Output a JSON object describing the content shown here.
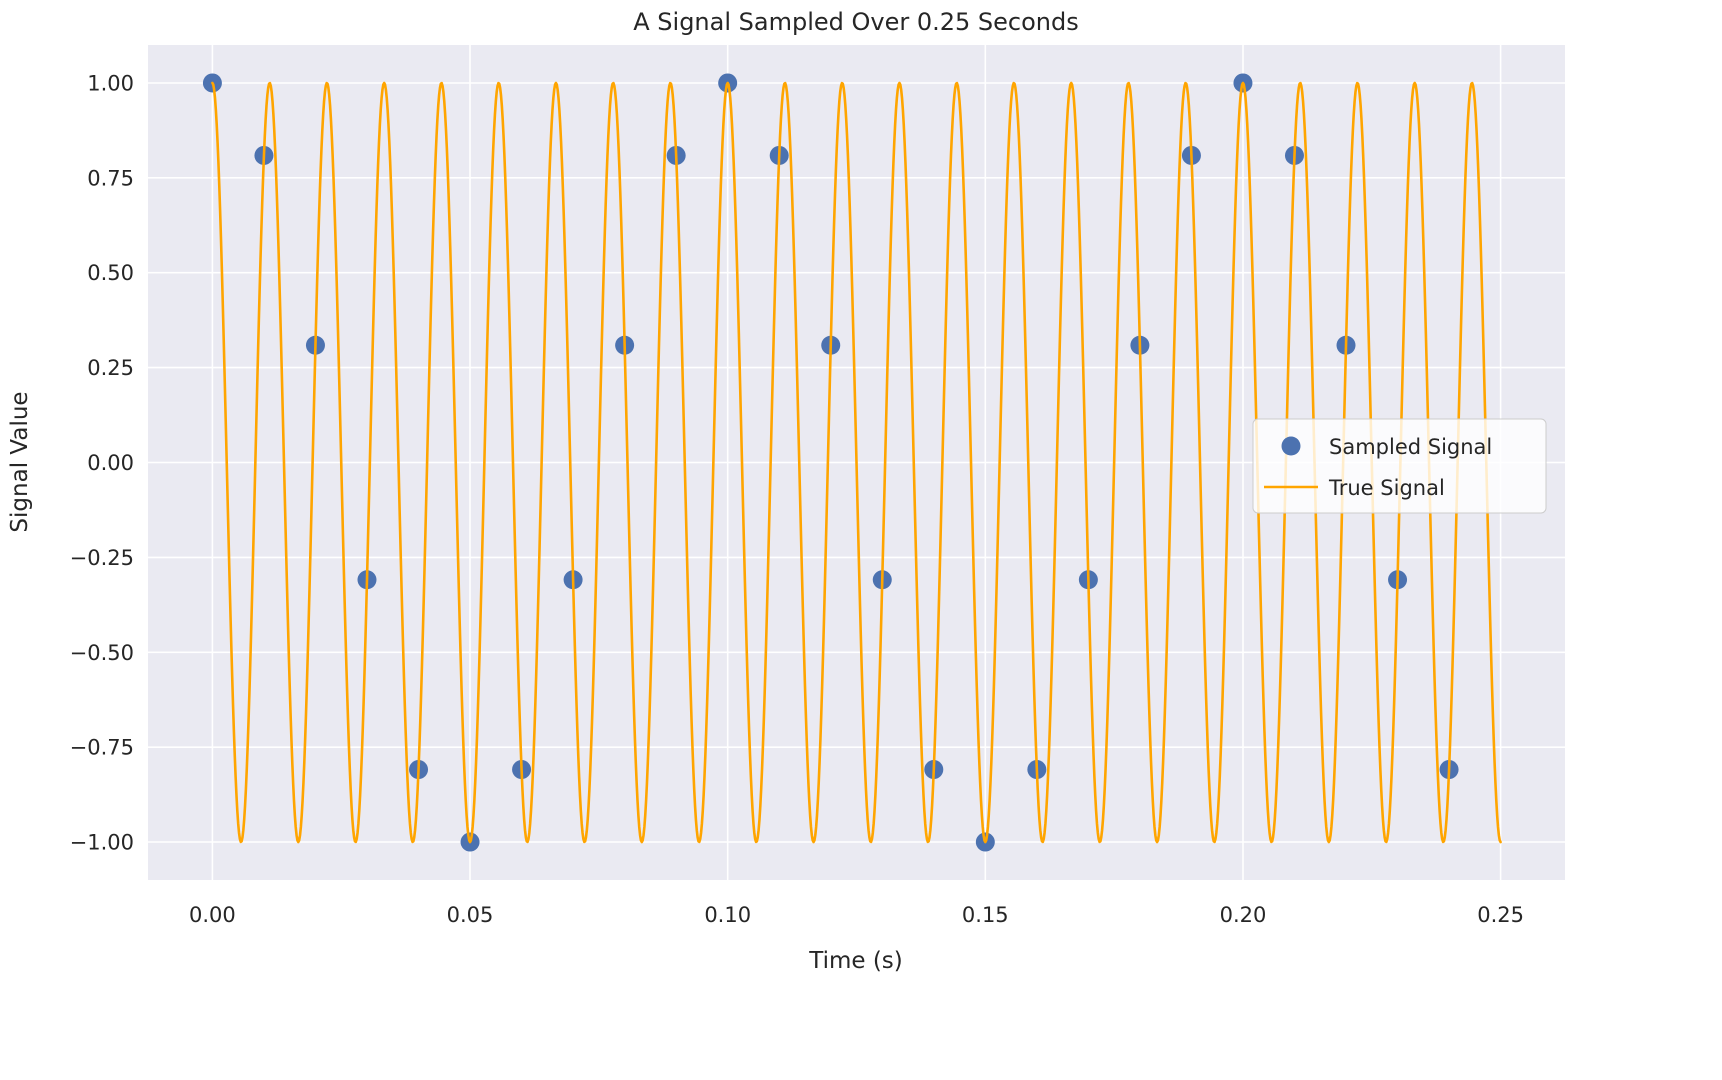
{
  "chart_data": {
    "type": "line",
    "title": "A Signal Sampled Over 0.25 Seconds",
    "xlabel": "Time (s)",
    "ylabel": "Signal Value",
    "xlim": [
      -0.0125,
      0.2625
    ],
    "ylim": [
      -1.1,
      1.1
    ],
    "x_ticks": [
      0,
      0.05,
      0.1,
      0.15,
      0.2,
      0.25
    ],
    "x_tick_labels": [
      "0.00",
      "0.05",
      "0.10",
      "0.15",
      "0.20",
      "0.25"
    ],
    "y_ticks": [
      1.0,
      0.75,
      0.5,
      0.25,
      0.0,
      -0.25,
      -0.5,
      -0.75,
      -1.0
    ],
    "y_tick_labels": [
      "1.00",
      "0.75",
      "0.50",
      "0.25",
      "0.00",
      "−0.25",
      "−0.50",
      "−0.75",
      "−1.00"
    ],
    "grid": true,
    "legend_position": "center right",
    "sampling_interval_s": 0.01,
    "series": [
      {
        "name": "Sampled Signal",
        "type": "scatter",
        "color": "#4C72B0",
        "marker_radius": 9.5,
        "x": [
          0,
          0.01,
          0.02,
          0.03,
          0.04,
          0.05,
          0.06,
          0.07,
          0.08,
          0.09,
          0.1,
          0.11,
          0.12,
          0.13,
          0.14,
          0.15,
          0.16,
          0.17,
          0.18,
          0.19,
          0.2,
          0.21,
          0.22,
          0.23,
          0.24
        ],
        "y": [
          1,
          0.809,
          0.309,
          -0.309,
          -0.809,
          -1,
          -0.809,
          -0.309,
          0.309,
          0.809,
          1,
          0.809,
          0.309,
          -0.309,
          -0.809,
          -1,
          -0.809,
          -0.309,
          0.309,
          0.809,
          1,
          0.809,
          0.309,
          -0.309,
          -0.809
        ]
      },
      {
        "name": "True Signal",
        "type": "line",
        "color": "#FFA500",
        "line_width": 2.6,
        "formula": "cos(2*pi*90*t)",
        "frequency_hz": 90,
        "amplitude": 1,
        "t_start": 0,
        "t_end": 0.25
      }
    ],
    "colors": {
      "plot_background": "#EAEAF2",
      "grid": "#FFFFFF",
      "text": "#262626",
      "legend_fill": "rgba(255,255,255,0.8)",
      "legend_border": "#CCCCCC"
    }
  }
}
